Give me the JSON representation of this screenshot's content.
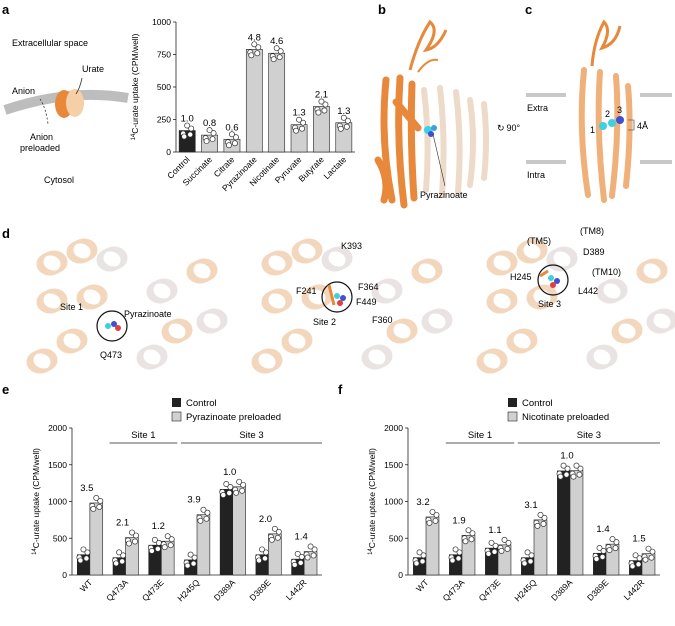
{
  "panels": {
    "a": "a",
    "b": "b",
    "c": "c",
    "d": "d",
    "e": "e",
    "f": "f"
  },
  "panel_a_schematic": {
    "extracellular": "Extracellular space",
    "urate": "Urate",
    "anion": "Anion",
    "anion_preloaded_1": "Anion",
    "anion_preloaded_2": "preloaded",
    "cytosol": "Cytosol"
  },
  "panel_b": {
    "ligand_label": "Pyrazinoate",
    "rotation": "90°"
  },
  "panel_c": {
    "extra": "Extra",
    "intra": "Intra",
    "site1": "1",
    "site2": "2",
    "site3": "3",
    "distance": "4Å"
  },
  "panel_d": {
    "site1_label": "Site 1",
    "site1_ligand": "Pyrazinoate",
    "site1_res": "Q473",
    "site2_label": "Site 2",
    "site2_res": [
      "K393",
      "F241",
      "F364",
      "F449",
      "F360"
    ],
    "site3_label": "Site 3",
    "site3_res": [
      "(TM5)",
      "(TM8)",
      "D389",
      "H245",
      "(TM10)",
      "L442"
    ]
  },
  "chart_data": [
    {
      "id": "a",
      "type": "bar",
      "ylabel": "14C-urate uptake (CPM/well)",
      "ylabel_sup": "14",
      "ylabel_rest": "C-urate uptake (CPM/well)",
      "ylim": [
        0,
        1000
      ],
      "yticks": [
        0,
        250,
        500,
        750,
        1000
      ],
      "categories": [
        "Control",
        "Succinate",
        "Citrate",
        "Pyrazinoate",
        "Nicotinate",
        "Pyruvate",
        "Butyrate",
        "Lactate"
      ],
      "values": [
        165,
        130,
        98,
        790,
        760,
        210,
        350,
        225
      ],
      "labels": [
        "1.0",
        "0.8",
        "0.6",
        "4.8",
        "4.6",
        "1.3",
        "2.1",
        "1.3"
      ],
      "colors": [
        "#222222",
        "#d0d0d0",
        "#d0d0d0",
        "#d0d0d0",
        "#d0d0d0",
        "#d0d0d0",
        "#d0d0d0",
        "#d0d0d0"
      ]
    },
    {
      "id": "e",
      "type": "bar",
      "ylabel_sup": "14",
      "ylabel_rest": "C-urate uptake (CPM/well)",
      "ylim": [
        0,
        2000
      ],
      "yticks": [
        0,
        500,
        1000,
        1500,
        2000
      ],
      "legend": [
        "Control",
        "Pyrazinoate preloaded"
      ],
      "groups": [
        "Site 1",
        "Site 3"
      ],
      "categories": [
        "WT",
        "Q473A",
        "Q473E",
        "H245Q",
        "D389A",
        "D389E",
        "L442R"
      ],
      "series": [
        {
          "name": "Control",
          "values": [
            280,
            240,
            410,
            210,
            1170,
            280,
            220
          ]
        },
        {
          "name": "Pyrazinoate preloaded",
          "values": [
            980,
            510,
            460,
            820,
            1200,
            560,
            320
          ]
        }
      ],
      "labels": [
        "3.5",
        "2.1",
        "1.2",
        "3.9",
        "1.0",
        "2.0",
        "1.4"
      ]
    },
    {
      "id": "f",
      "type": "bar",
      "ylabel_sup": "14",
      "ylabel_rest": "C-urate uptake (CPM/well)",
      "ylim": [
        0,
        2000
      ],
      "yticks": [
        0,
        500,
        1000,
        1500,
        2000
      ],
      "legend": [
        "Control",
        "Nicotinate preloaded"
      ],
      "groups": [
        "Site 1",
        "Site 3"
      ],
      "categories": [
        "WT",
        "Q473A",
        "Q473E",
        "H245Q",
        "D389A",
        "D389E",
        "L442R"
      ],
      "series": [
        {
          "name": "Control",
          "values": [
            240,
            280,
            370,
            240,
            1420,
            300,
            200
          ]
        },
        {
          "name": "Nicotinate preloaded",
          "values": [
            790,
            540,
            410,
            750,
            1420,
            420,
            290
          ]
        }
      ],
      "labels": [
        "3.2",
        "1.9",
        "1.1",
        "3.1",
        "1.0",
        "1.4",
        "1.5"
      ]
    }
  ],
  "colors": {
    "orange": "#e8883a",
    "light_orange": "#f5cfa6",
    "ghost": "#f1d6bf",
    "dark": "#222222",
    "grey": "#d0d0d0"
  }
}
